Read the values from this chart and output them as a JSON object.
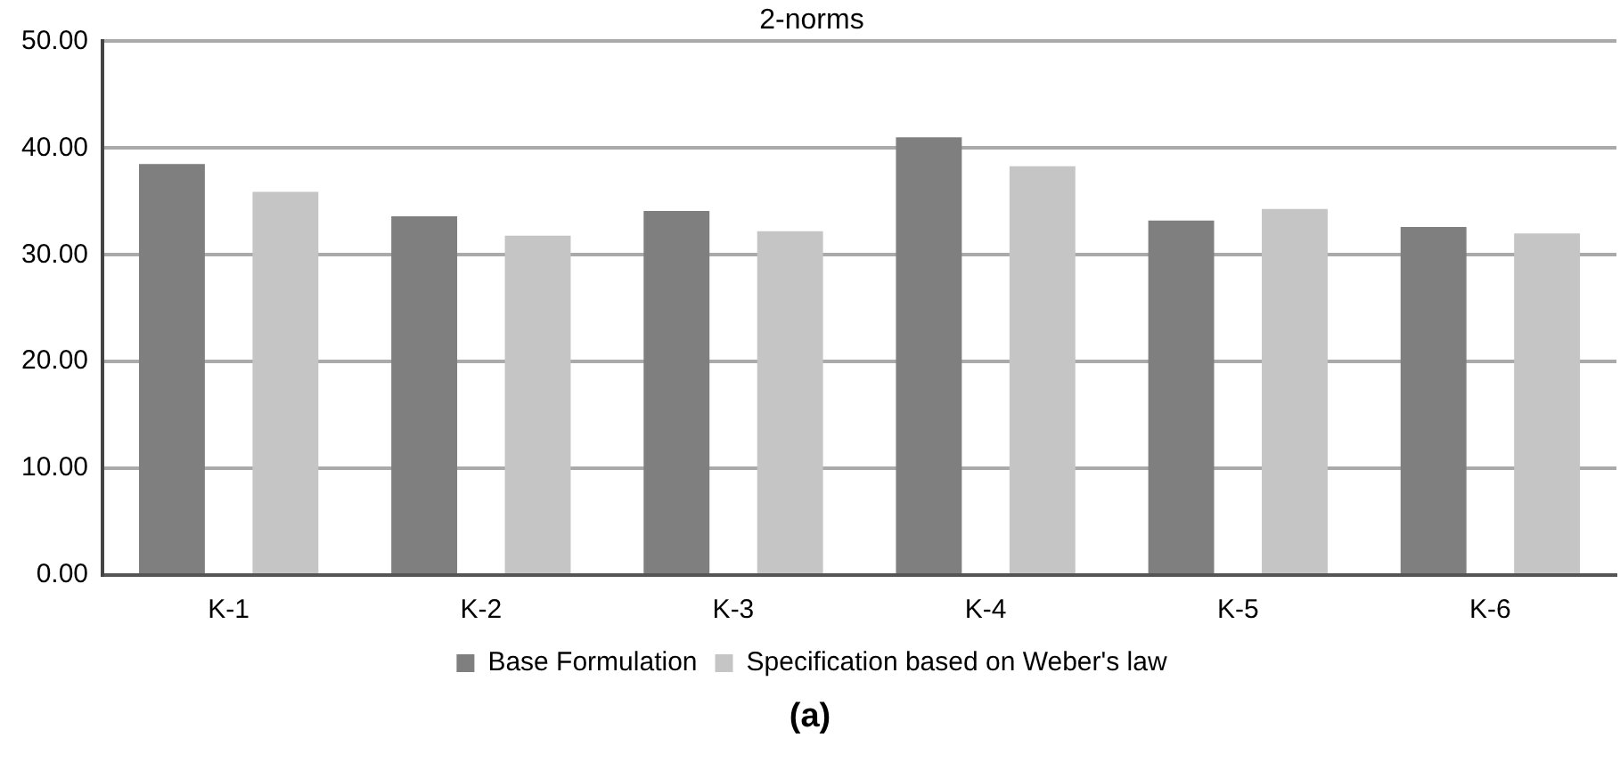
{
  "chart_data": {
    "type": "bar",
    "title": "2-norms",
    "categories": [
      "K-1",
      "K-2",
      "K-3",
      "K-4",
      "K-5",
      "K-6"
    ],
    "series": [
      {
        "name": "Base Formulation",
        "color": "#7f7f7f",
        "values": [
          38.5,
          33.6,
          34.1,
          41.0,
          33.2,
          32.6
        ]
      },
      {
        "name": "Specification based on Weber's law",
        "color": "#c4c5c4",
        "values": [
          35.9,
          31.8,
          32.2,
          38.3,
          34.3,
          32.0
        ]
      }
    ],
    "ylim": [
      0,
      50
    ],
    "yticks": [
      {
        "value": 0,
        "label": "0.00"
      },
      {
        "value": 10,
        "label": "10.00"
      },
      {
        "value": 20,
        "label": "20.00"
      },
      {
        "value": 30,
        "label": "30.00"
      },
      {
        "value": 40,
        "label": "40.00"
      },
      {
        "value": 50,
        "label": "50.00"
      }
    ],
    "grid": "y",
    "legend": "bottom",
    "annotations": [
      "(a)"
    ]
  }
}
